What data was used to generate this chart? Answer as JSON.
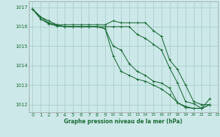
{
  "title": "Graphe pression niveau de la mer (hPa)",
  "bg_color": "#cce8e8",
  "grid_color": "#aacccc",
  "line_color": "#1a6b35",
  "xlim": [
    -0.5,
    23
  ],
  "ylim": [
    1011.6,
    1017.3
  ],
  "yticks": [
    1012,
    1013,
    1014,
    1015,
    1016,
    1017
  ],
  "xticks": [
    0,
    1,
    2,
    3,
    4,
    5,
    6,
    7,
    8,
    9,
    10,
    11,
    12,
    13,
    14,
    15,
    16,
    17,
    18,
    19,
    20,
    21,
    22,
    23
  ],
  "series": [
    [
      1016.9,
      1016.5,
      1016.3,
      1016.1,
      1016.1,
      1016.1,
      1016.1,
      1016.1,
      1016.1,
      1016.1,
      1016.3,
      1016.2,
      1016.2,
      1016.2,
      1016.2,
      1015.8,
      1015.5,
      1014.3,
      1013.8,
      1013.0,
      1012.15,
      1012.0,
      1012.0,
      null
    ],
    [
      1016.9,
      1016.5,
      1016.2,
      1016.1,
      1016.0,
      1016.0,
      1016.0,
      1016.0,
      1016.0,
      1016.0,
      1016.0,
      1016.0,
      1016.0,
      1015.6,
      1015.4,
      1015.1,
      1014.8,
      1013.9,
      1013.1,
      1012.15,
      1012.05,
      1011.8,
      1012.3,
      null
    ],
    [
      1016.9,
      1016.4,
      1016.15,
      1016.05,
      1016.0,
      1016.0,
      1016.0,
      1016.0,
      1016.0,
      1015.9,
      1015.0,
      1014.8,
      1014.1,
      1013.7,
      1013.5,
      1013.2,
      1013.1,
      1012.85,
      1012.1,
      1011.9,
      1011.8,
      1011.8,
      1012.0,
      null
    ],
    [
      1016.9,
      1016.4,
      1016.15,
      1016.05,
      1016.0,
      1016.0,
      1016.0,
      1016.0,
      1016.0,
      1015.9,
      1014.5,
      1013.7,
      1013.5,
      1013.3,
      1013.2,
      1013.0,
      1012.8,
      1012.5,
      1012.1,
      1011.85,
      1011.8,
      1011.8,
      1012.0,
      null
    ]
  ]
}
